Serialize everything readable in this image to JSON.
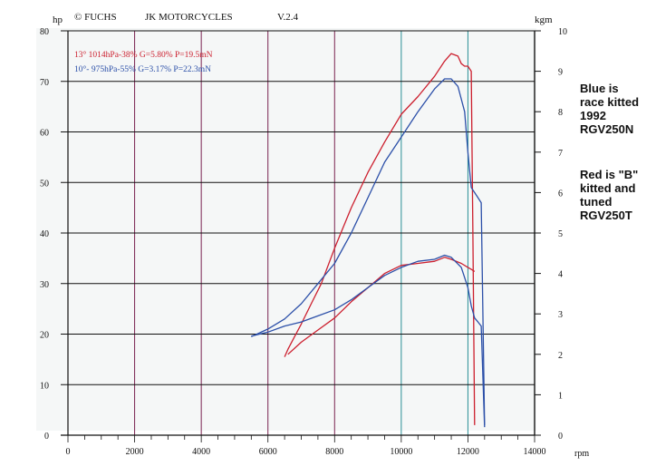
{
  "header": {
    "copyright": "© FUCHS",
    "company": "JK MOTORCYCLES",
    "version": "V.2.4"
  },
  "notes": {
    "blue": "Blue is\nrace kitted\n1992\nRGV250N",
    "red": "Red is \"B\"\nkitted and\ntuned\nRGV250T"
  },
  "colors": {
    "red": "#cc1f2e",
    "blue": "#2b4fa8",
    "grid_black": "#111111",
    "grid_purple": "#7a2350",
    "grid_teal": "#2a8f96",
    "panel_bg": "#f5f7f7"
  },
  "chart_data": {
    "type": "line",
    "xlabel": "rpm",
    "ylabel_left": "hp",
    "ylabel_right": "kgm",
    "xlim": [
      0,
      14000
    ],
    "ylim_left": [
      0,
      80
    ],
    "ylim_right": [
      0,
      10
    ],
    "x_ticks": [
      "0",
      "2000",
      "4000",
      "6000",
      "8000",
      "10000",
      "12000",
      "14000"
    ],
    "y_ticks_left": [
      "0",
      "10",
      "20",
      "30",
      "40",
      "50",
      "60",
      "70",
      "80"
    ],
    "y_ticks_right": [
      "0",
      "1",
      "2",
      "3",
      "4",
      "5",
      "6",
      "7",
      "8",
      "9",
      "10"
    ],
    "legend": [
      "13° 1014hPa-38% G=5.80% P=19.5mN",
      "10°- 975hPa-55% G=3.17% P=22.3mN"
    ],
    "series": [
      {
        "name": "13° 1014hPa-38% G=5.80% P=19.5mN",
        "color": "red",
        "axis": "hp",
        "x": [
          6500,
          6600,
          6800,
          7000,
          7300,
          7600,
          8000,
          8500,
          9000,
          9500,
          10000,
          10500,
          11000,
          11300,
          11500,
          11700,
          11800,
          11900,
          12000,
          12100,
          12150,
          12200
        ],
        "y": [
          15.5,
          17,
          19.5,
          22,
          26,
          30,
          37,
          45,
          52,
          58,
          63.5,
          67,
          71,
          74,
          75.5,
          75,
          73.5,
          73,
          73,
          72,
          40,
          2
        ]
      },
      {
        "name": "10°- 975hPa-55% G=3.17% P=22.3mN",
        "color": "blue",
        "axis": "hp",
        "x": [
          5500,
          6000,
          6500,
          7000,
          7500,
          8000,
          8500,
          9000,
          9500,
          10000,
          10500,
          11000,
          11300,
          11500,
          11700,
          11900,
          12000,
          12100,
          12200,
          12300,
          12400,
          12500
        ],
        "y": [
          19.5,
          21,
          23,
          26,
          30,
          34,
          40,
          47,
          54,
          59,
          64,
          68.5,
          70.5,
          70.5,
          69,
          64,
          56,
          49,
          48,
          47,
          46,
          2
        ]
      },
      {
        "name": "13° 1014hPa-38% G=5.80% P=19.5mN",
        "color": "red",
        "axis": "kgm",
        "x": [
          6600,
          7000,
          7500,
          8000,
          8500,
          9000,
          9500,
          10000,
          10500,
          11000,
          11300,
          11500,
          11800,
          12000,
          12100,
          12200
        ],
        "y": [
          2.0,
          2.3,
          2.6,
          2.9,
          3.3,
          3.65,
          4.0,
          4.2,
          4.25,
          4.3,
          4.4,
          4.35,
          4.25,
          4.15,
          4.1,
          4.05
        ]
      },
      {
        "name": "10°- 975hPa-55% G=3.17% P=22.3mN",
        "color": "blue",
        "axis": "kgm",
        "x": [
          5500,
          6000,
          6500,
          7000,
          7500,
          8000,
          8500,
          9000,
          9500,
          10000,
          10500,
          11000,
          11300,
          11500,
          11800,
          12000,
          12100,
          12200,
          12300,
          12400,
          12500
        ],
        "y": [
          2.45,
          2.55,
          2.7,
          2.8,
          2.95,
          3.1,
          3.35,
          3.65,
          3.95,
          4.15,
          4.3,
          4.35,
          4.45,
          4.4,
          4.15,
          3.65,
          3.2,
          2.9,
          2.8,
          2.7,
          0.2
        ]
      }
    ]
  }
}
